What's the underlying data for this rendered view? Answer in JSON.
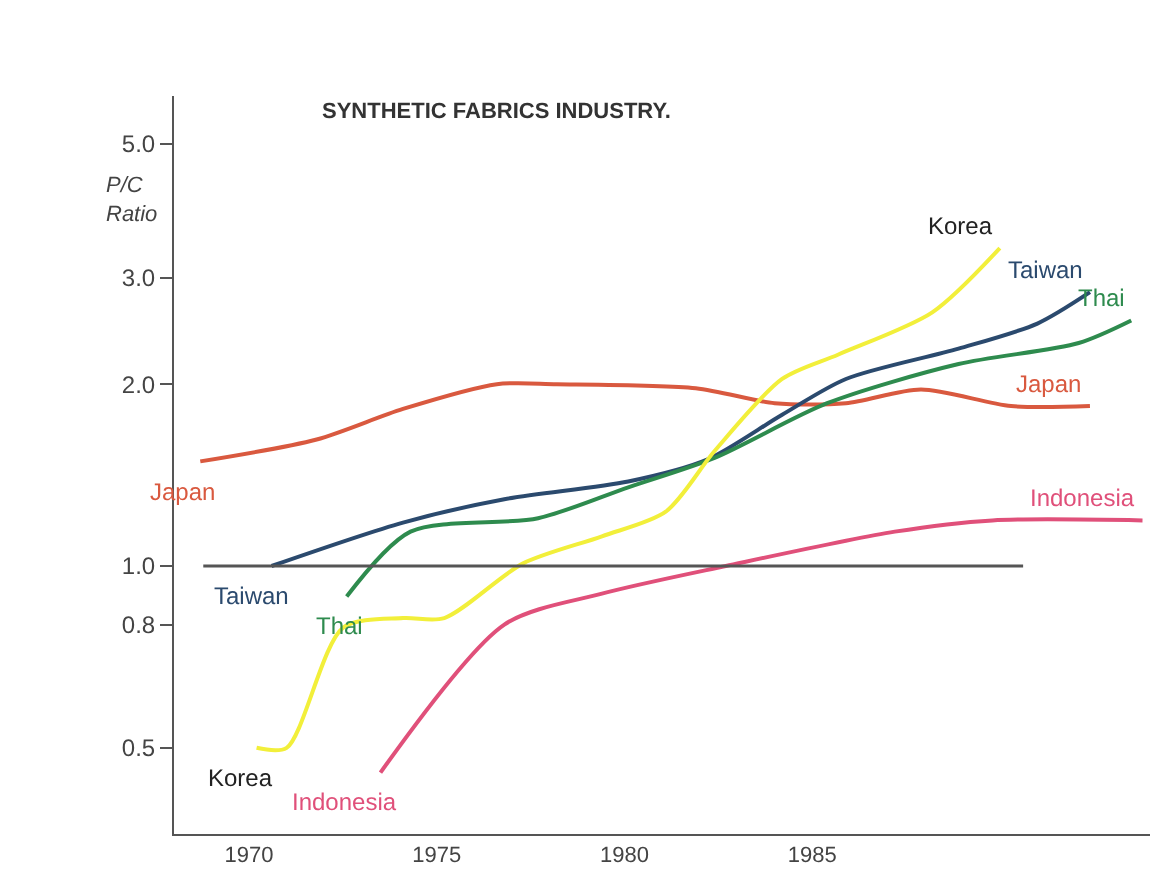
{
  "chart_data": {
    "type": "line",
    "title": "SYNTHETIC FABRICS INDUSTRY.",
    "ylabel": "P/C Ratio",
    "log": true,
    "grid": false,
    "legend": false,
    "marker": "none",
    "line_style": "solid",
    "xlim": [
      1968,
      1994
    ],
    "xticks": [
      1970,
      1975,
      1980,
      1985
    ],
    "ylim": [
      0.36,
      6
    ],
    "yticks": [
      {
        "value": 0.5,
        "label": "0.5"
      },
      {
        "value": 0.8,
        "label": "0.8"
      },
      {
        "value": 1,
        "label": "1.0"
      },
      {
        "value": 2,
        "label": "2.0"
      },
      {
        "value": 3,
        "label": "3.0"
      },
      {
        "value": 5,
        "label": "5.0"
      }
    ],
    "ref_lines": [
      {
        "axis": "y",
        "value": 1,
        "color": "#555555"
      }
    ],
    "series": [
      {
        "name": "Japan",
        "color": "#d9593f",
        "x": [
          1968.7,
          1971.8,
          1974.1,
          1976.6,
          1978.2,
          1981.9,
          1984.0,
          1985.9,
          1987.9,
          1990.3,
          1992.4
        ],
        "values": [
          1.49,
          1.62,
          1.82,
          2.0,
          2.0,
          1.97,
          1.86,
          1.86,
          1.96,
          1.84,
          1.84
        ]
      },
      {
        "name": "Taiwan",
        "color": "#2b4a6e",
        "x": [
          1970.6,
          1974.1,
          1976.8,
          1980.1,
          1982.2,
          1984.2,
          1985.9,
          1988.9,
          1991.0,
          1992.4
        ],
        "values": [
          1.0,
          1.18,
          1.29,
          1.38,
          1.5,
          1.78,
          2.04,
          2.29,
          2.52,
          2.84
        ]
      },
      {
        "name": "Thai",
        "color": "#2e8b4e",
        "x": [
          1972.6,
          1974.3,
          1977.7,
          1980.1,
          1982.4,
          1985.4,
          1988.9,
          1992.1,
          1993.5
        ],
        "values": [
          0.89,
          1.14,
          1.2,
          1.35,
          1.51,
          1.86,
          2.16,
          2.34,
          2.55
        ]
      },
      {
        "name": "Korea",
        "color": "#f2ef3a",
        "x": [
          1970.2,
          1971.0,
          1972.5,
          1974.1,
          1975.2,
          1977.3,
          1979.4,
          1981.1,
          1982.4,
          1984.2,
          1985.7,
          1988.2,
          1990.0
        ],
        "values": [
          0.5,
          0.5,
          0.79,
          0.82,
          0.82,
          1.01,
          1.12,
          1.23,
          1.55,
          2.04,
          2.24,
          2.63,
          3.36
        ]
      },
      {
        "name": "Indonesia",
        "color": "#e0507a",
        "x": [
          1973.5,
          1976.8,
          1979.4,
          1982.7,
          1987.2,
          1989.8,
          1993.8
        ],
        "values": [
          0.455,
          0.8,
          0.9,
          1.0,
          1.14,
          1.19,
          1.19
        ]
      }
    ]
  }
}
